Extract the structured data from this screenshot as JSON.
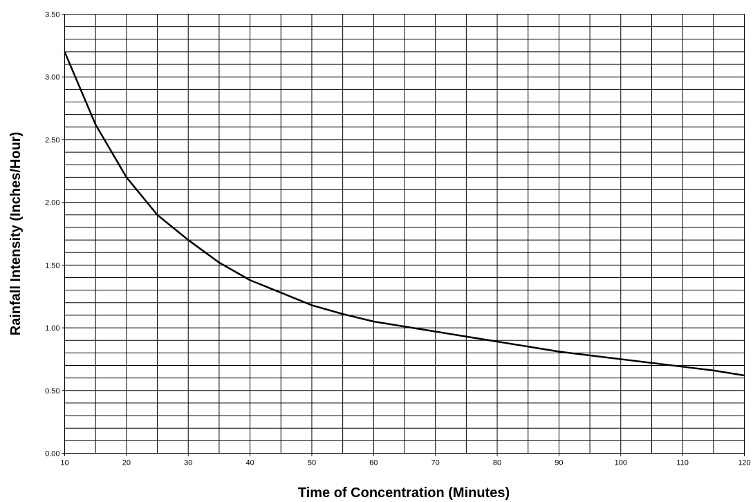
{
  "chart_data": {
    "type": "line",
    "xlabel": "Time of Concentration (Minutes)",
    "ylabel": "Rainfall Intensity (Inches/Hour)",
    "x": [
      10,
      15,
      20,
      25,
      30,
      35,
      40,
      45,
      50,
      55,
      60,
      65,
      70,
      75,
      80,
      85,
      90,
      95,
      100,
      105,
      110,
      115,
      120
    ],
    "series": [
      {
        "color": "#000000",
        "values": [
          3.2,
          2.62,
          2.2,
          1.9,
          1.7,
          1.52,
          1.38,
          1.28,
          1.18,
          1.11,
          1.05,
          1.01,
          0.97,
          0.93,
          0.89,
          0.85,
          0.81,
          0.78,
          0.75,
          0.72,
          0.69,
          0.66,
          0.62
        ]
      }
    ],
    "xlim": [
      10,
      120
    ],
    "xticks": [
      10,
      20,
      30,
      40,
      50,
      60,
      70,
      80,
      90,
      100,
      110,
      120
    ],
    "xminor_ticks": [
      15,
      25,
      35,
      45,
      55,
      65,
      75,
      85,
      95,
      105,
      115
    ],
    "ylim": [
      0,
      3.5
    ],
    "yticks": [
      {
        "value": 0,
        "label": "0.00"
      },
      {
        "value": 0.5,
        "label": "0.50"
      },
      {
        "value": 1,
        "label": "1.00"
      },
      {
        "value": 1.5,
        "label": "1.50"
      },
      {
        "value": 2,
        "label": "2.00"
      },
      {
        "value": 2.5,
        "label": "2.50"
      },
      {
        "value": 3,
        "label": "3.00"
      },
      {
        "value": 3.5,
        "label": "3.50"
      }
    ],
    "yminor_ticks": [
      0.1,
      0.2,
      0.3,
      0.4,
      0.6,
      0.7,
      0.8,
      0.9,
      1.1,
      1.2,
      1.3,
      1.4,
      1.6,
      1.7,
      1.8,
      1.9,
      2.1,
      2.2,
      2.3,
      2.4,
      2.6,
      2.7,
      2.8,
      2.9,
      3.1,
      3.2,
      3.3,
      3.4
    ],
    "grid": true
  }
}
